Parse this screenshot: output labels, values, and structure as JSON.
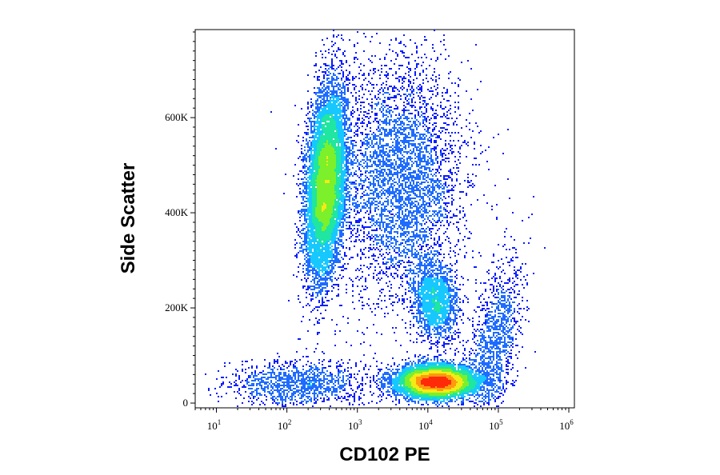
{
  "chart_data": {
    "type": "scatter",
    "subtype": "flow-cytometry density dot plot",
    "title": "",
    "xlabel": "CD102 PE",
    "ylabel": "Side Scatter",
    "x_scale": "log",
    "xlim": [
      5,
      1200000
    ],
    "ylim": [
      -10000,
      785000
    ],
    "x_ticks": [
      {
        "base": "10",
        "exp": "1",
        "value": 10
      },
      {
        "base": "10",
        "exp": "2",
        "value": 100
      },
      {
        "base": "10",
        "exp": "3",
        "value": 1000
      },
      {
        "base": "10",
        "exp": "4",
        "value": 10000
      },
      {
        "base": "10",
        "exp": "5",
        "value": 100000
      },
      {
        "base": "10",
        "exp": "6",
        "value": 1000000
      }
    ],
    "y_ticks": [
      {
        "label": "0",
        "value": 0
      },
      {
        "label": "200K",
        "value": 200000
      },
      {
        "label": "400K",
        "value": 400000
      },
      {
        "label": "600K",
        "value": 600000
      }
    ],
    "color_scale": [
      "#0a1cff",
      "#1e6bff",
      "#17c8ff",
      "#1fe6a0",
      "#7cf02a",
      "#f4ea16",
      "#ff9a10",
      "#ff2a08"
    ],
    "populations": [
      {
        "center_log10_x": 2.55,
        "center_y": 460000,
        "sd_log10_x": 0.14,
        "sd_y": 95000,
        "share": 0.36,
        "tilt": 0.9
      },
      {
        "center_log10_x": 4.12,
        "center_y": 45000,
        "sd_log10_x": 0.28,
        "sd_y": 17000,
        "share": 0.3,
        "tilt": 0.0
      },
      {
        "center_log10_x": 4.1,
        "center_y": 215000,
        "sd_log10_x": 0.16,
        "sd_y": 40000,
        "share": 0.07,
        "tilt": -0.5
      },
      {
        "center_log10_x": 3.6,
        "center_y": 470000,
        "sd_log10_x": 0.45,
        "sd_y": 130000,
        "share": 0.17,
        "tilt": 0.0
      },
      {
        "center_log10_x": 4.95,
        "center_y": 120000,
        "sd_log10_x": 0.2,
        "sd_y": 80000,
        "share": 0.05,
        "tilt": 1.6
      },
      {
        "center_log10_x": 2.2,
        "center_y": 40000,
        "sd_log10_x": 0.5,
        "sd_y": 25000,
        "share": 0.05,
        "tilt": 0.0
      }
    ],
    "grid": false
  }
}
